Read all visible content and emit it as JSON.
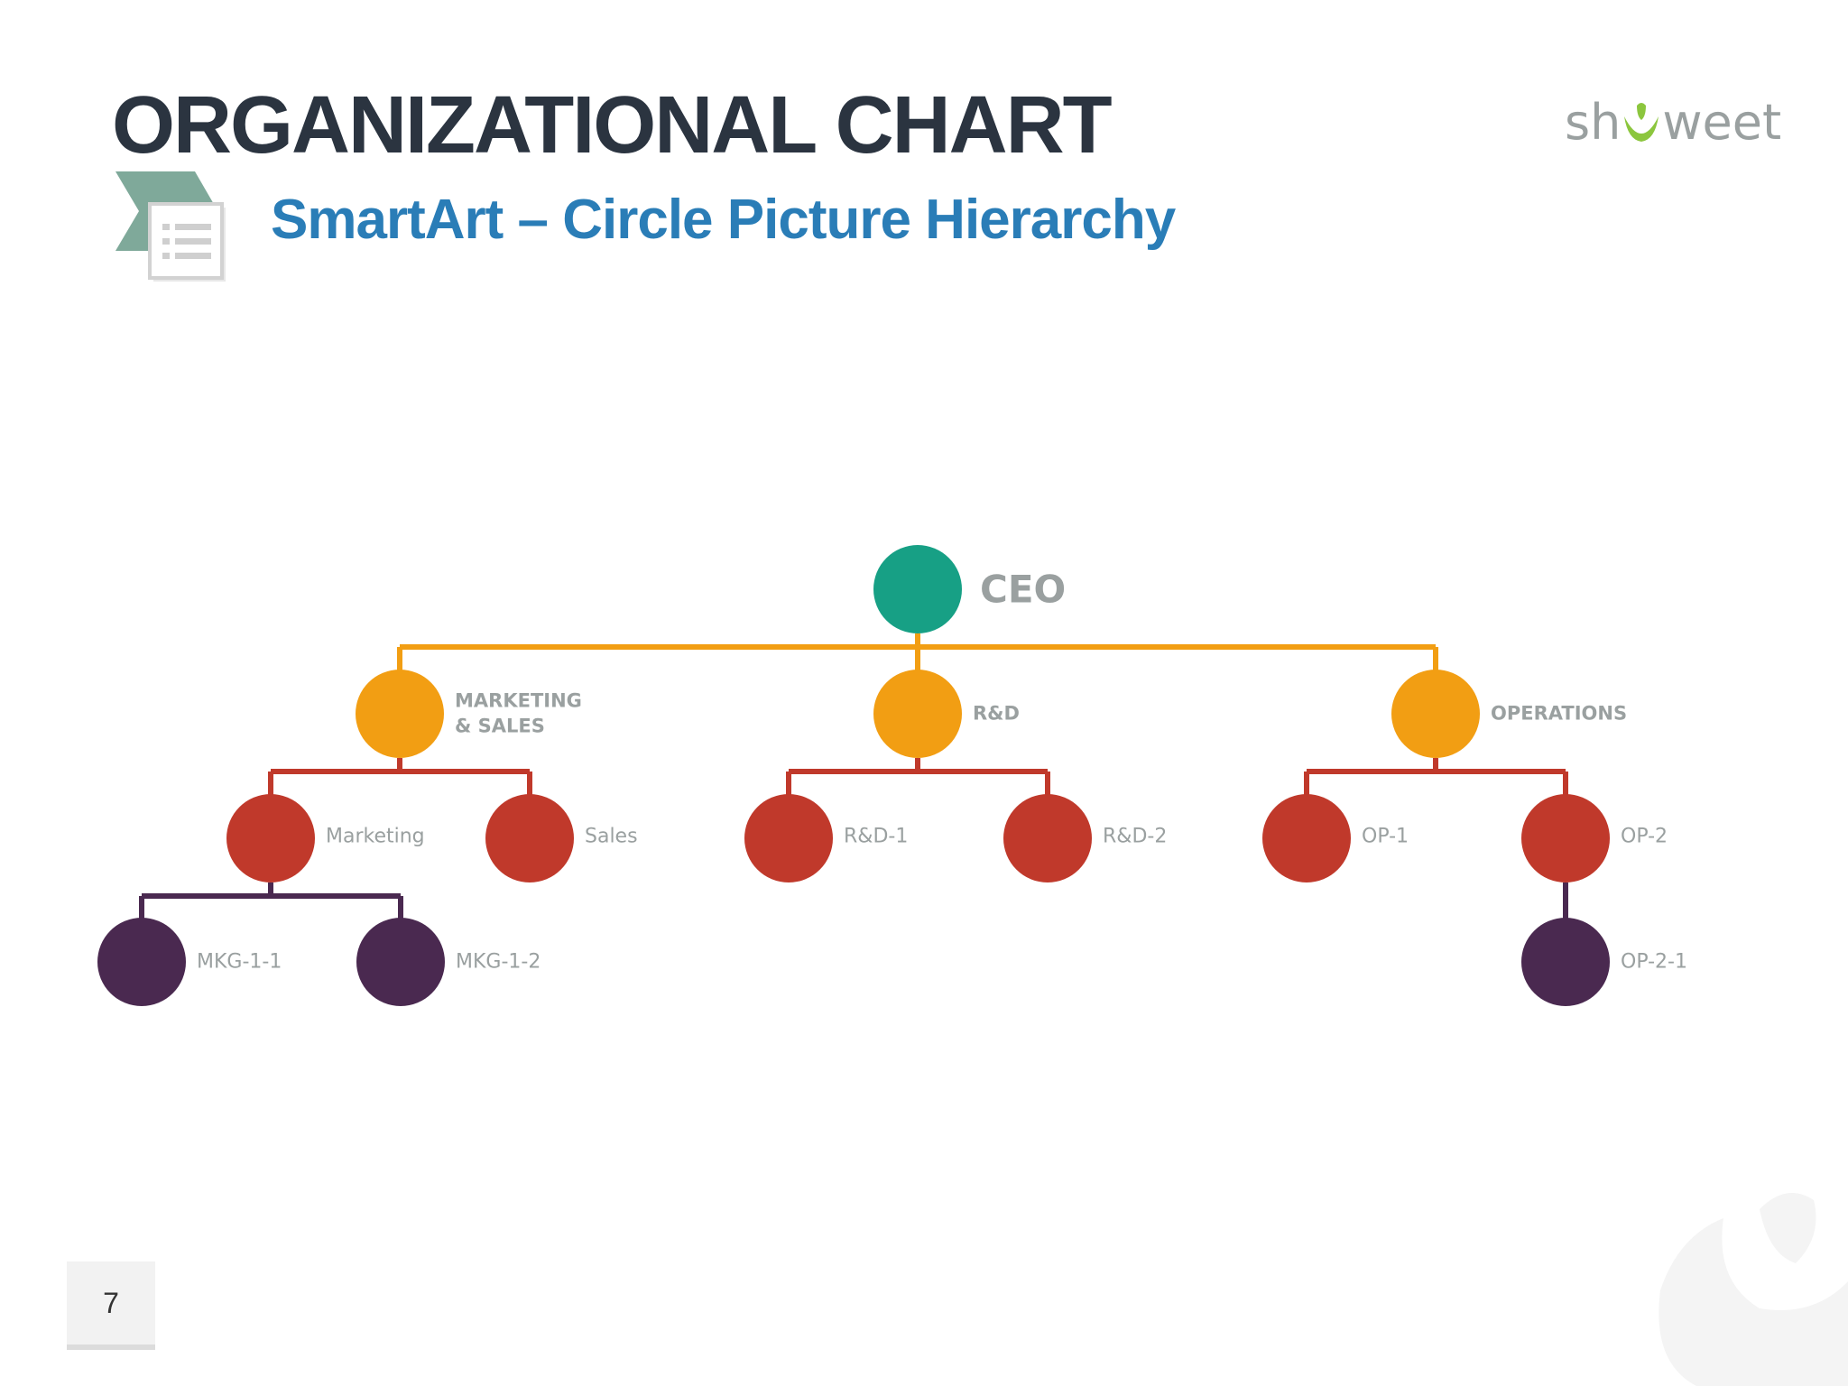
{
  "slide": {
    "title": "ORGANIZATIONAL CHART",
    "subtitle": "SmartArt – Circle Picture Hierarchy",
    "page_number": "7",
    "logo": {
      "left": "sh",
      "right": "weet",
      "icon": "smile-leaf-icon"
    }
  },
  "colors": {
    "title": "#2b3440",
    "subtitle": "#2a7db7",
    "label": "#9aa0a0",
    "ceo": "#17a085",
    "level1": "#f29e13",
    "level2": "#c0392b",
    "level3": "#4a2950"
  },
  "org": {
    "ceo": {
      "label": "CEO"
    },
    "departments": [
      {
        "label_lines": [
          "MARKETING",
          "& SALES"
        ],
        "teams": [
          {
            "label": "Marketing",
            "subteams": [
              {
                "label": "MKG-1-1"
              },
              {
                "label": "MKG-1-2"
              }
            ]
          },
          {
            "label": "Sales",
            "subteams": []
          }
        ]
      },
      {
        "label_lines": [
          "R&D"
        ],
        "teams": [
          {
            "label": "R&D-1",
            "subteams": []
          },
          {
            "label": "R&D-2",
            "subteams": []
          }
        ]
      },
      {
        "label_lines": [
          "OPERATIONS"
        ],
        "teams": [
          {
            "label": "OP-1",
            "subteams": []
          },
          {
            "label": "OP-2",
            "subteams": [
              {
                "label": "OP-2-1"
              }
            ]
          }
        ]
      }
    ]
  }
}
